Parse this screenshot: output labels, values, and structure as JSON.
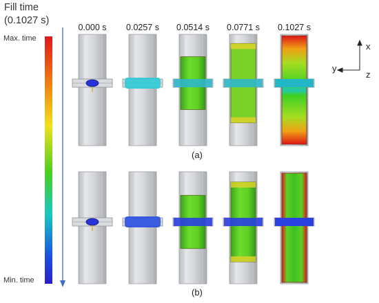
{
  "legend": {
    "title_line1": "Fill time",
    "title_line2": "(0.1027 s)",
    "max_label": "Max. time",
    "min_label": "Min. time",
    "gradient_colors": [
      "#e0161a",
      "#f07a12",
      "#f2e01b",
      "#49cf20",
      "#18c8c0",
      "#1a55e0",
      "#2a1fc8"
    ]
  },
  "time_steps": [
    "0.000 s",
    "0.0257 s",
    "0.0514 s",
    "0.0771 s",
    "0.1027 s"
  ],
  "fill_fraction": [
    0.0,
    0.25,
    0.5,
    0.75,
    1.0
  ],
  "rows": [
    {
      "caption": "(a)"
    },
    {
      "caption": "(b)"
    }
  ],
  "axes": {
    "x": "x",
    "y": "y",
    "z": "z"
  }
}
